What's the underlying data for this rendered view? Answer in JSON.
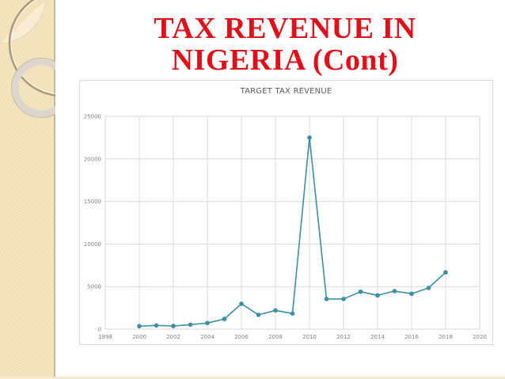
{
  "slide": {
    "title_line1": "TAX REVENUE IN",
    "title_line2": "NIGERIA (Cont)",
    "title_color": "#e0101a",
    "accent_band_color": "#f1dfb6"
  },
  "chart_data": {
    "type": "scatter",
    "mode": "lines+markers",
    "title": "TARGET TAX REVENUE",
    "xlabel": "",
    "ylabel": "",
    "xlim": [
      1998,
      2020
    ],
    "ylim": [
      0,
      25000
    ],
    "xticks": [
      1998,
      2000,
      2002,
      2004,
      2006,
      2008,
      2010,
      2012,
      2014,
      2016,
      2018,
      2020
    ],
    "yticks": [
      0,
      5000,
      10000,
      15000,
      20000,
      25000
    ],
    "grid": true,
    "legend": "none",
    "series": [
      {
        "name": "Target Tax Revenue",
        "color": "#3a8fa3",
        "x": [
          2000,
          2001,
          2002,
          2003,
          2004,
          2005,
          2006,
          2007,
          2008,
          2009,
          2010,
          2011,
          2012,
          2013,
          2014,
          2015,
          2016,
          2017,
          2018
        ],
        "values": [
          350,
          440,
          370,
          530,
          720,
          1200,
          2980,
          1680,
          2200,
          1830,
          22500,
          3540,
          3540,
          4400,
          3970,
          4470,
          4160,
          4840,
          6670
        ]
      }
    ]
  }
}
